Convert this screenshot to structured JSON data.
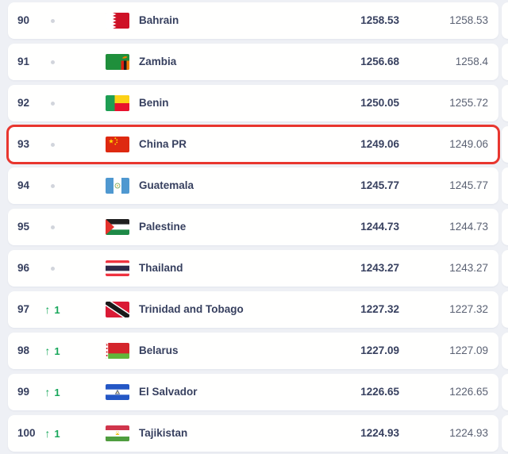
{
  "colors": {
    "page_background": "#eef0f5",
    "card_background": "#ffffff",
    "text_primary": "#37405f",
    "text_secondary": "#5a6173",
    "rank_up_green": "#18a75a",
    "no_change_dot_gray": "#d2d5dc",
    "highlight_border_red": "#e8362f"
  },
  "icons": {
    "up_arrow": "↑",
    "no_change_dot": "dot"
  },
  "table": {
    "rows": [
      {
        "rank": "90",
        "change": {
          "direction": "none",
          "amount": ""
        },
        "team": "Bahrain",
        "flag": "bahrain",
        "total_points": "1258.53",
        "previous_points": "1258.53",
        "highlighted": false
      },
      {
        "rank": "91",
        "change": {
          "direction": "none",
          "amount": ""
        },
        "team": "Zambia",
        "flag": "zambia",
        "total_points": "1256.68",
        "previous_points": "1258.4",
        "highlighted": false
      },
      {
        "rank": "92",
        "change": {
          "direction": "none",
          "amount": ""
        },
        "team": "Benin",
        "flag": "benin",
        "total_points": "1250.05",
        "previous_points": "1255.72",
        "highlighted": false
      },
      {
        "rank": "93",
        "change": {
          "direction": "none",
          "amount": ""
        },
        "team": "China PR",
        "flag": "china-pr",
        "total_points": "1249.06",
        "previous_points": "1249.06",
        "highlighted": true
      },
      {
        "rank": "94",
        "change": {
          "direction": "none",
          "amount": ""
        },
        "team": "Guatemala",
        "flag": "guatemala",
        "total_points": "1245.77",
        "previous_points": "1245.77",
        "highlighted": false
      },
      {
        "rank": "95",
        "change": {
          "direction": "none",
          "amount": ""
        },
        "team": "Palestine",
        "flag": "palestine",
        "total_points": "1244.73",
        "previous_points": "1244.73",
        "highlighted": false
      },
      {
        "rank": "96",
        "change": {
          "direction": "none",
          "amount": ""
        },
        "team": "Thailand",
        "flag": "thailand",
        "total_points": "1243.27",
        "previous_points": "1243.27",
        "highlighted": false
      },
      {
        "rank": "97",
        "change": {
          "direction": "up",
          "amount": "1"
        },
        "team": "Trinidad and Tobago",
        "flag": "trinidad-tobago",
        "total_points": "1227.32",
        "previous_points": "1227.32",
        "highlighted": false
      },
      {
        "rank": "98",
        "change": {
          "direction": "up",
          "amount": "1"
        },
        "team": "Belarus",
        "flag": "belarus",
        "total_points": "1227.09",
        "previous_points": "1227.09",
        "highlighted": false
      },
      {
        "rank": "99",
        "change": {
          "direction": "up",
          "amount": "1"
        },
        "team": "El Salvador",
        "flag": "el-salvador",
        "total_points": "1226.65",
        "previous_points": "1226.65",
        "highlighted": false
      },
      {
        "rank": "100",
        "change": {
          "direction": "up",
          "amount": "1"
        },
        "team": "Tajikistan",
        "flag": "tajikistan",
        "total_points": "1224.93",
        "previous_points": "1224.93",
        "highlighted": false
      }
    ]
  }
}
